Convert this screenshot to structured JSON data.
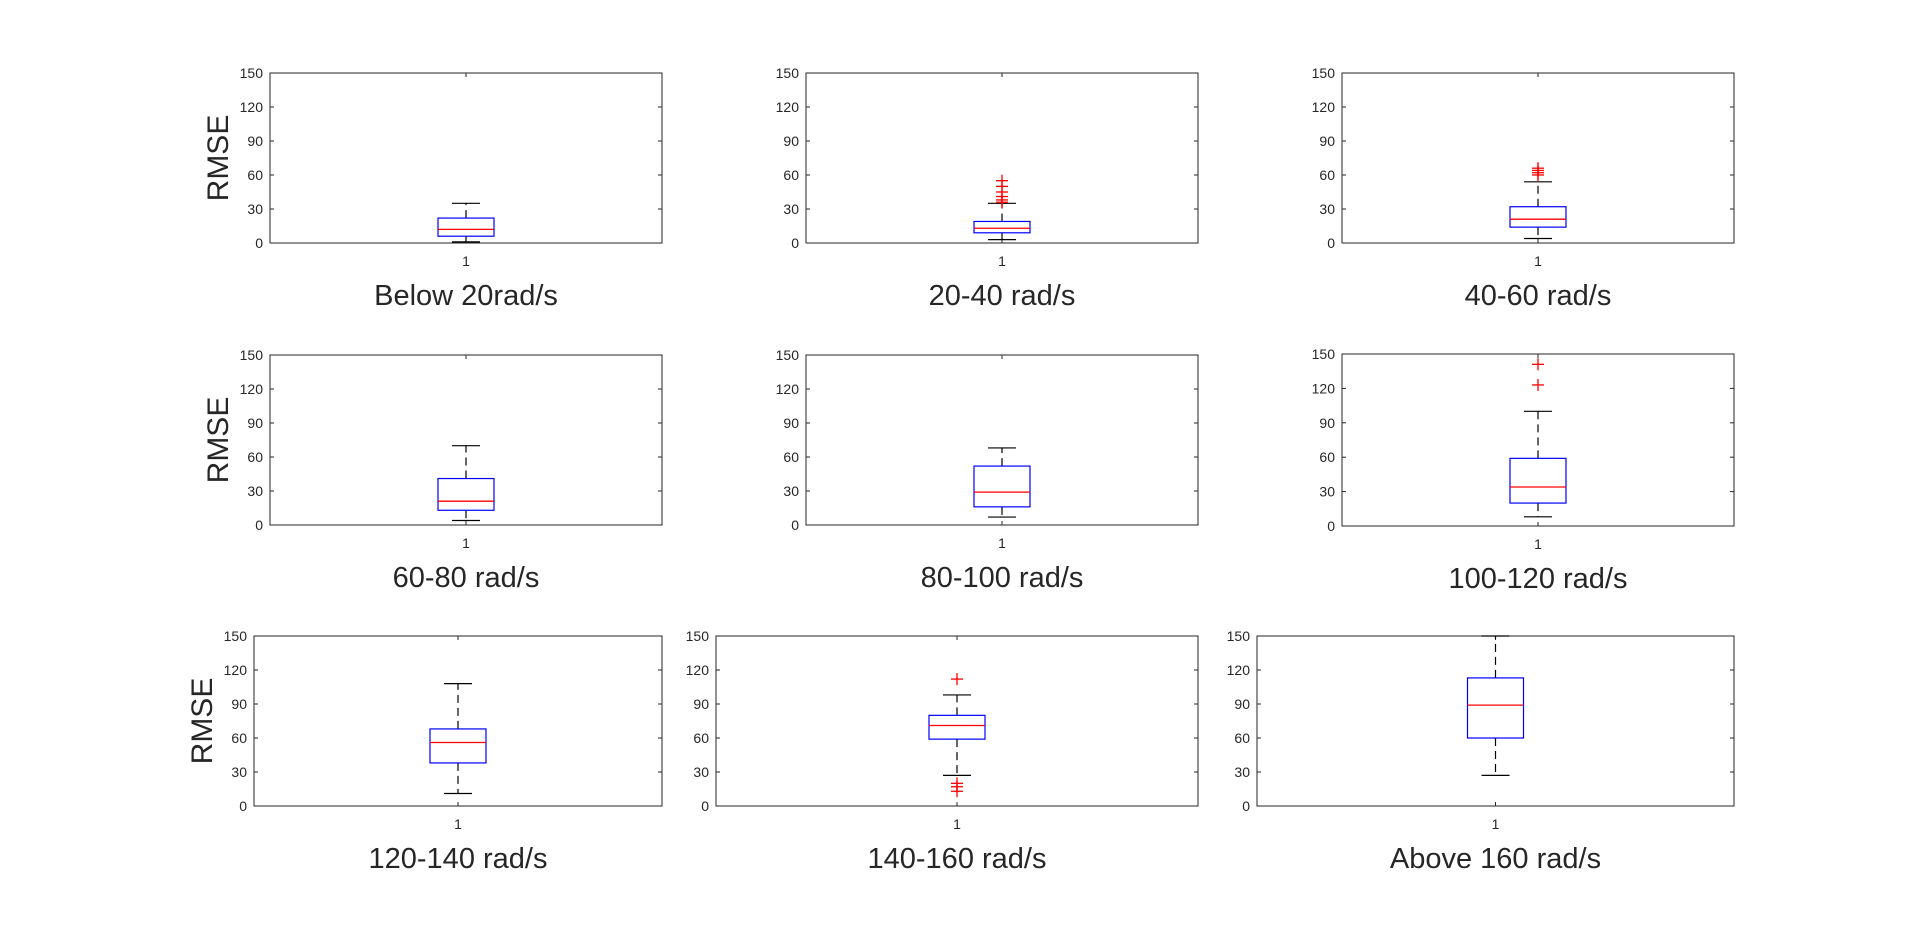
{
  "chart_data": [
    {
      "type": "box",
      "categories": [
        "1"
      ],
      "title": "",
      "xlabel": "Below 20rad/s",
      "ylabel": "RMSE",
      "ylim": [
        0,
        150
      ],
      "yticks": [
        0,
        30,
        60,
        90,
        120,
        150
      ],
      "grid": false,
      "box": {
        "whisker_low": 1,
        "q1": 6,
        "median": 12,
        "q3": 22,
        "whisker_high": 35,
        "outliers": []
      },
      "colors": {
        "box": "#0000ff",
        "median": "#ff0000",
        "whisker": "#000000",
        "outlier": "#ff0000"
      }
    },
    {
      "type": "box",
      "categories": [
        "1"
      ],
      "title": "",
      "xlabel": "20-40 rad/s",
      "ylabel": "",
      "ylim": [
        0,
        150
      ],
      "yticks": [
        0,
        30,
        60,
        90,
        120,
        150
      ],
      "grid": false,
      "box": {
        "whisker_low": 3,
        "q1": 9,
        "median": 13,
        "q3": 19,
        "whisker_high": 35,
        "outliers": [
          36,
          38,
          41,
          45,
          50,
          55
        ]
      },
      "colors": {
        "box": "#0000ff",
        "median": "#ff0000",
        "whisker": "#000000",
        "outlier": "#ff0000"
      }
    },
    {
      "type": "box",
      "categories": [
        "1"
      ],
      "title": "",
      "xlabel": "40-60 rad/s",
      "ylabel": "",
      "ylim": [
        0,
        150
      ],
      "yticks": [
        0,
        30,
        60,
        90,
        120,
        150
      ],
      "grid": false,
      "box": {
        "whisker_low": 4,
        "q1": 14,
        "median": 21,
        "q3": 32,
        "whisker_high": 54,
        "outliers": [
          60,
          62,
          64,
          66
        ]
      },
      "colors": {
        "box": "#0000ff",
        "median": "#ff0000",
        "whisker": "#000000",
        "outlier": "#ff0000"
      }
    },
    {
      "type": "box",
      "categories": [
        "1"
      ],
      "title": "",
      "xlabel": "60-80 rad/s",
      "ylabel": "RMSE",
      "ylim": [
        0,
        150
      ],
      "yticks": [
        0,
        30,
        60,
        90,
        120,
        150
      ],
      "grid": false,
      "box": {
        "whisker_low": 4,
        "q1": 13,
        "median": 21,
        "q3": 41,
        "whisker_high": 70,
        "outliers": []
      },
      "colors": {
        "box": "#0000ff",
        "median": "#ff0000",
        "whisker": "#000000",
        "outlier": "#ff0000"
      }
    },
    {
      "type": "box",
      "categories": [
        "1"
      ],
      "title": "",
      "xlabel": "80-100 rad/s",
      "ylabel": "",
      "ylim": [
        0,
        150
      ],
      "yticks": [
        0,
        30,
        60,
        90,
        120,
        150
      ],
      "grid": false,
      "box": {
        "whisker_low": 7,
        "q1": 16,
        "median": 29,
        "q3": 52,
        "whisker_high": 68,
        "outliers": []
      },
      "colors": {
        "box": "#0000ff",
        "median": "#ff0000",
        "whisker": "#000000",
        "outlier": "#ff0000"
      }
    },
    {
      "type": "box",
      "categories": [
        "1"
      ],
      "title": "",
      "xlabel": "100-120 rad/s",
      "ylabel": "",
      "ylim": [
        0,
        150
      ],
      "yticks": [
        0,
        30,
        60,
        90,
        120,
        150
      ],
      "grid": false,
      "box": {
        "whisker_low": 8,
        "q1": 20,
        "median": 34,
        "q3": 59,
        "whisker_high": 100,
        "outliers": [
          123,
          141
        ]
      },
      "colors": {
        "box": "#0000ff",
        "median": "#ff0000",
        "whisker": "#000000",
        "outlier": "#ff0000"
      }
    },
    {
      "type": "box",
      "categories": [
        "1"
      ],
      "title": "",
      "xlabel": "120-140 rad/s",
      "ylabel": "RMSE",
      "ylim": [
        0,
        150
      ],
      "yticks": [
        0,
        30,
        60,
        90,
        120,
        150
      ],
      "grid": false,
      "box": {
        "whisker_low": 11,
        "q1": 38,
        "median": 56,
        "q3": 68,
        "whisker_high": 108,
        "outliers": []
      },
      "colors": {
        "box": "#0000ff",
        "median": "#ff0000",
        "whisker": "#000000",
        "outlier": "#ff0000"
      }
    },
    {
      "type": "box",
      "categories": [
        "1"
      ],
      "title": "",
      "xlabel": "140-160 rad/s",
      "ylabel": "",
      "ylim": [
        0,
        150
      ],
      "yticks": [
        0,
        30,
        60,
        90,
        120,
        150
      ],
      "grid": false,
      "box": {
        "whisker_low": 27,
        "q1": 59,
        "median": 71,
        "q3": 80,
        "whisker_high": 98,
        "outliers": [
          13,
          17,
          20,
          112
        ]
      },
      "colors": {
        "box": "#0000ff",
        "median": "#ff0000",
        "whisker": "#000000",
        "outlier": "#ff0000"
      }
    },
    {
      "type": "box",
      "categories": [
        "1"
      ],
      "title": "",
      "xlabel": "Above 160 rad/s",
      "ylabel": "",
      "ylim": [
        0,
        150
      ],
      "yticks": [
        0,
        30,
        60,
        90,
        120,
        150
      ],
      "grid": false,
      "box": {
        "whisker_low": 27,
        "q1": 60,
        "median": 89,
        "q3": 113,
        "whisker_high": 150,
        "outliers": []
      },
      "colors": {
        "box": "#0000ff",
        "median": "#ff0000",
        "whisker": "#000000",
        "outlier": "#ff0000"
      }
    }
  ]
}
